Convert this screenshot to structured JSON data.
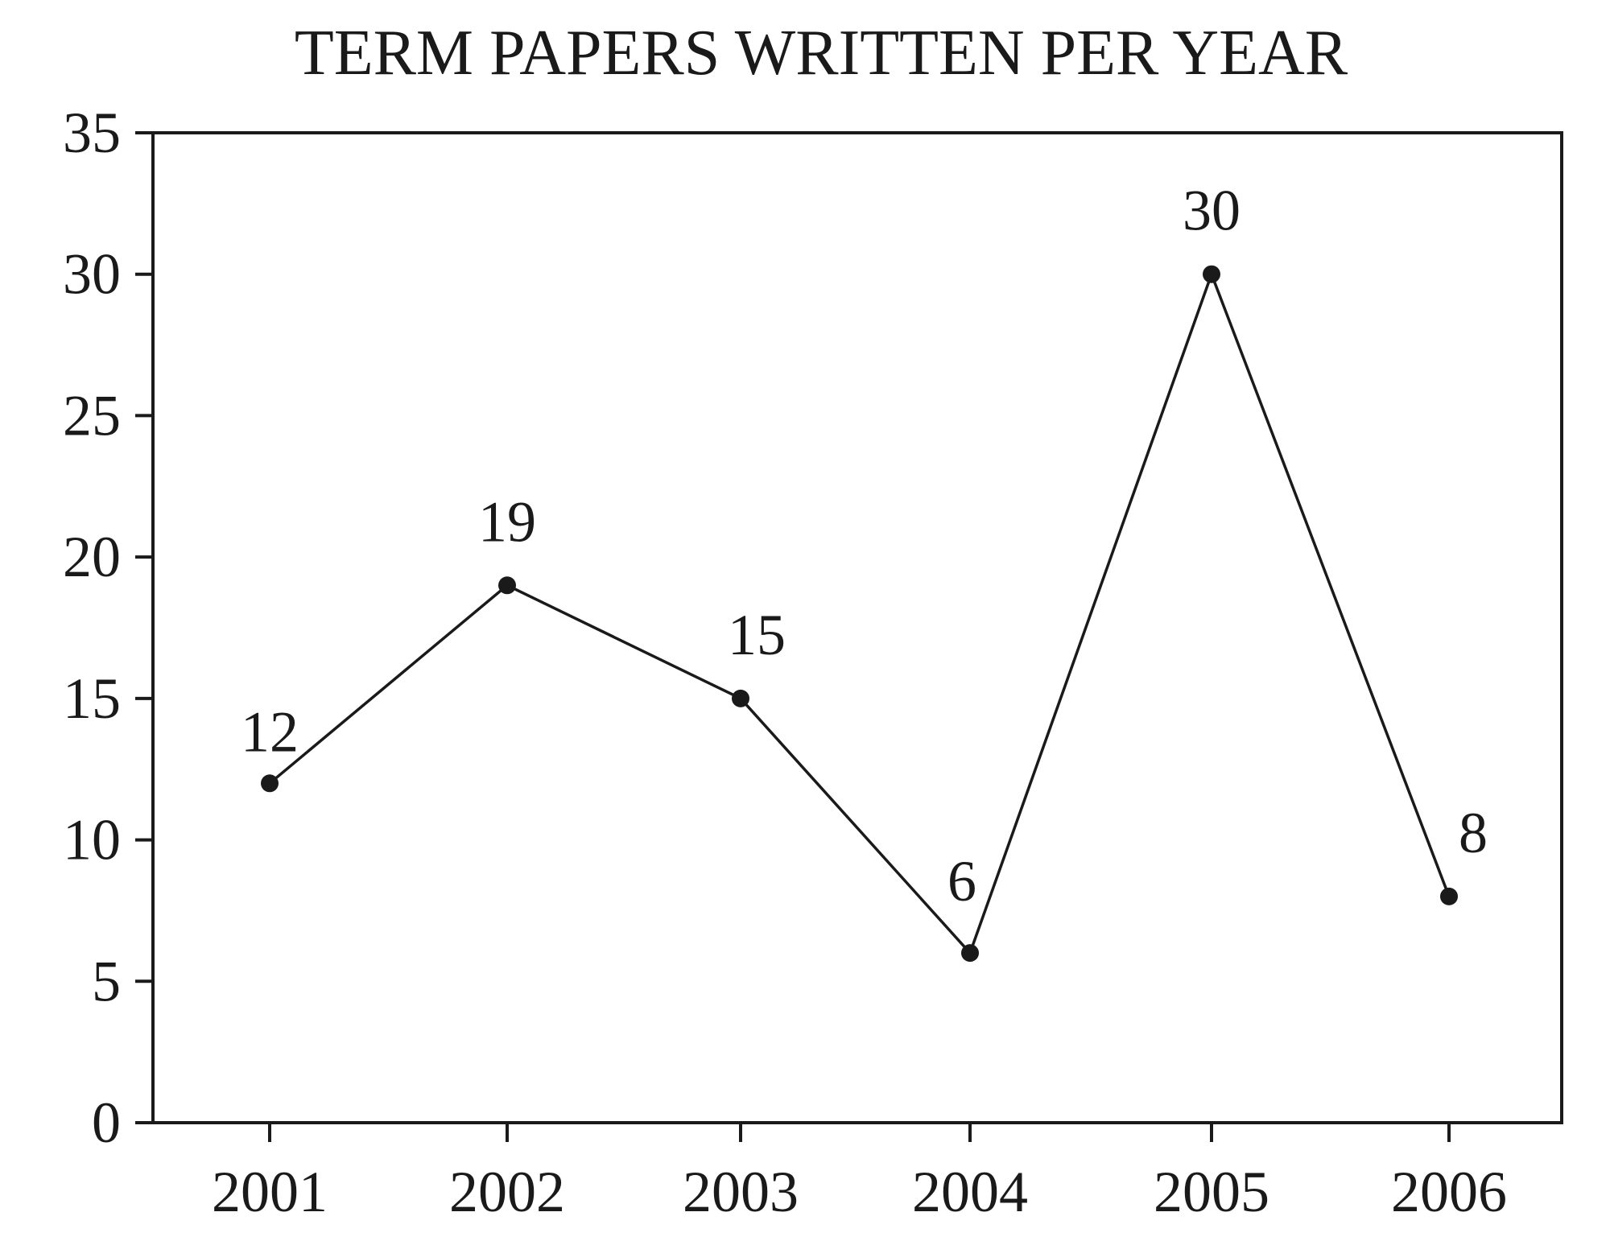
{
  "chart_data": {
    "type": "line",
    "title": "TERM PAPERS WRITTEN PER YEAR",
    "xlabel": "",
    "ylabel": "",
    "categories": [
      "2001",
      "2002",
      "2003",
      "2004",
      "2005",
      "2006"
    ],
    "series": [
      {
        "values": [
          12,
          19,
          15,
          6,
          30,
          8
        ]
      }
    ],
    "data_labels": [
      "12",
      "19",
      "15",
      "6",
      "30",
      "8"
    ],
    "ylim": [
      0,
      35
    ],
    "yticks": [
      0,
      5,
      10,
      15,
      20,
      25,
      30,
      35
    ],
    "grid": false,
    "legend": "none",
    "colors": {
      "line": "#1a1a1a",
      "marker": "#1a1a1a",
      "frame": "#1a1a1a"
    }
  }
}
